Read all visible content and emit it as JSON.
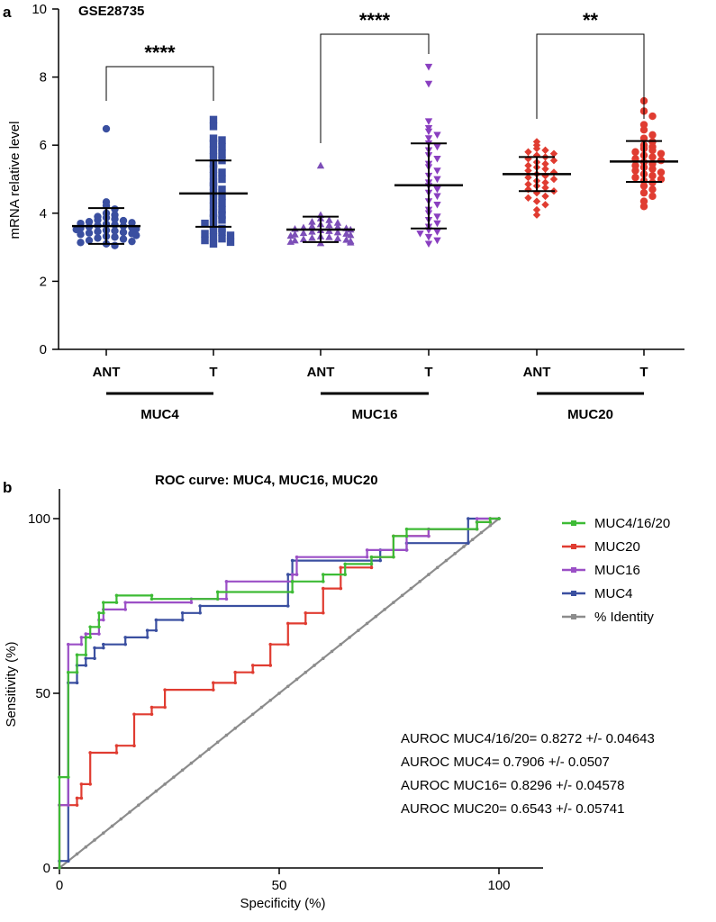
{
  "figure": {
    "panel_a_letter": "a",
    "panel_b_letter": "b"
  },
  "chart_data": [
    {
      "type": "scatter",
      "title": "GSE28735",
      "xlabel": "",
      "ylabel": "mRNA relative level",
      "ylim": [
        0,
        10
      ],
      "yticks": [
        0,
        2,
        4,
        6,
        8,
        10
      ],
      "categories": [
        "ANT",
        "T",
        "ANT",
        "T",
        "ANT",
        "T"
      ],
      "groups": [
        "MUC4",
        "MUC16",
        "MUC20"
      ],
      "significance": [
        "****",
        "****",
        "**"
      ],
      "series": [
        {
          "group": "MUC4",
          "category": "ANT",
          "color": "#3a4fa0",
          "marker": "circle",
          "mean": 3.62,
          "sd_low": 3.1,
          "sd_high": 4.15,
          "values": [
            6.48,
            4.33,
            4.22,
            4.12,
            4.0,
            3.95,
            3.9,
            3.87,
            3.83,
            3.8,
            3.78,
            3.75,
            3.72,
            3.7,
            3.68,
            3.66,
            3.64,
            3.62,
            3.6,
            3.58,
            3.56,
            3.54,
            3.52,
            3.5,
            3.48,
            3.46,
            3.44,
            3.42,
            3.4,
            3.38,
            3.35,
            3.32,
            3.3,
            3.27,
            3.24,
            3.2,
            3.17,
            3.14,
            3.1,
            3.05
          ]
        },
        {
          "group": "MUC4",
          "category": "T",
          "color": "#3a4fa0",
          "marker": "square",
          "mean": 4.58,
          "sd_low": 3.6,
          "sd_high": 5.55,
          "values": [
            6.75,
            6.55,
            6.2,
            6.15,
            6.05,
            5.95,
            5.85,
            5.75,
            5.65,
            5.55,
            5.45,
            5.3,
            5.2,
            5.1,
            5.0,
            4.9,
            4.8,
            4.7,
            4.6,
            4.5,
            4.4,
            4.3,
            4.2,
            4.1,
            4.0,
            3.95,
            3.85,
            3.8,
            3.7,
            3.65,
            3.55,
            3.5,
            3.45,
            3.4,
            3.35,
            3.3,
            3.25,
            3.2,
            3.15,
            3.1
          ]
        },
        {
          "group": "MUC16",
          "category": "ANT",
          "color": "#7d4fb8",
          "marker": "triangle-up",
          "mean": 3.52,
          "sd_low": 3.15,
          "sd_high": 3.9,
          "values": [
            5.4,
            3.95,
            3.85,
            3.8,
            3.75,
            3.72,
            3.68,
            3.65,
            3.62,
            3.6,
            3.58,
            3.56,
            3.54,
            3.52,
            3.5,
            3.48,
            3.46,
            3.44,
            3.42,
            3.4,
            3.38,
            3.36,
            3.34,
            3.32,
            3.3,
            3.28,
            3.26,
            3.24,
            3.22,
            3.2,
            3.18,
            3.16,
            3.14,
            3.12
          ]
        },
        {
          "group": "MUC16",
          "category": "T",
          "color": "#8a3fc0",
          "marker": "triangle-down",
          "mean": 4.82,
          "sd_low": 3.55,
          "sd_high": 6.05,
          "values": [
            8.3,
            7.8,
            6.7,
            6.5,
            6.4,
            6.3,
            6.2,
            6.05,
            5.95,
            5.85,
            5.7,
            5.6,
            5.45,
            5.35,
            5.25,
            5.1,
            5.0,
            4.9,
            4.8,
            4.7,
            4.6,
            4.5,
            4.35,
            4.25,
            4.1,
            4.0,
            3.9,
            3.8,
            3.7,
            3.6,
            3.5,
            3.45,
            3.4,
            3.3,
            3.2,
            3.1
          ]
        },
        {
          "group": "MUC20",
          "category": "ANT",
          "color": "#e03c31",
          "marker": "diamond",
          "mean": 5.15,
          "sd_low": 4.65,
          "sd_high": 5.65,
          "values": [
            6.1,
            6.0,
            5.9,
            5.85,
            5.8,
            5.75,
            5.7,
            5.65,
            5.6,
            5.55,
            5.5,
            5.45,
            5.4,
            5.35,
            5.3,
            5.25,
            5.2,
            5.15,
            5.1,
            5.05,
            5.0,
            4.95,
            4.9,
            4.85,
            4.8,
            4.75,
            4.7,
            4.65,
            4.6,
            4.5,
            4.45,
            4.35,
            4.25,
            4.1,
            3.95
          ]
        },
        {
          "group": "MUC20",
          "category": "T",
          "color": "#e03c31",
          "marker": "circle",
          "mean": 5.52,
          "sd_low": 4.92,
          "sd_high": 6.12,
          "values": [
            7.3,
            7.0,
            6.85,
            6.6,
            6.45,
            6.3,
            6.2,
            6.1,
            6.0,
            5.95,
            5.9,
            5.85,
            5.8,
            5.75,
            5.7,
            5.65,
            5.6,
            5.55,
            5.5,
            5.45,
            5.4,
            5.35,
            5.3,
            5.25,
            5.2,
            5.15,
            5.1,
            5.05,
            5.0,
            4.95,
            4.9,
            4.8,
            4.7,
            4.6,
            4.5,
            4.35,
            4.2
          ]
        }
      ]
    },
    {
      "type": "line",
      "title": "ROC curve:  MUC4, MUC16, MUC20",
      "xlabel": "Specificity (%)",
      "ylabel": "Sensitivity (%)",
      "xlim": [
        0,
        110
      ],
      "ylim": [
        0,
        110
      ],
      "xticks": [
        0,
        50,
        100
      ],
      "yticks": [
        0,
        50,
        100
      ],
      "legend_position": "top-right",
      "series": [
        {
          "name": "MUC4/16/20",
          "color": "#3dbb35",
          "points": [
            [
              0,
              0
            ],
            [
              0,
              26
            ],
            [
              2,
              26
            ],
            [
              2,
              56
            ],
            [
              4,
              56
            ],
            [
              4,
              61
            ],
            [
              6,
              61
            ],
            [
              6,
              66
            ],
            [
              7,
              66
            ],
            [
              7,
              69
            ],
            [
              9,
              69
            ],
            [
              9,
              73
            ],
            [
              10,
              73
            ],
            [
              10,
              76
            ],
            [
              13,
              76
            ],
            [
              13,
              78
            ],
            [
              21,
              78
            ],
            [
              21,
              77
            ],
            [
              36,
              77
            ],
            [
              36,
              79
            ],
            [
              53,
              79
            ],
            [
              53,
              82
            ],
            [
              60,
              82
            ],
            [
              60,
              84
            ],
            [
              65,
              84
            ],
            [
              65,
              87
            ],
            [
              71,
              87
            ],
            [
              71,
              89
            ],
            [
              76,
              89
            ],
            [
              76,
              95
            ],
            [
              79,
              95
            ],
            [
              79,
              97
            ],
            [
              95,
              97
            ],
            [
              95,
              99
            ],
            [
              98,
              99
            ],
            [
              98,
              100
            ],
            [
              100,
              100
            ]
          ]
        },
        {
          "name": "MUC20",
          "color": "#e03c31",
          "points": [
            [
              0,
              0
            ],
            [
              0,
              18
            ],
            [
              4,
              18
            ],
            [
              4,
              20
            ],
            [
              5,
              20
            ],
            [
              5,
              24
            ],
            [
              7,
              24
            ],
            [
              7,
              33
            ],
            [
              13,
              33
            ],
            [
              13,
              35
            ],
            [
              17,
              35
            ],
            [
              17,
              44
            ],
            [
              21,
              44
            ],
            [
              21,
              46
            ],
            [
              24,
              46
            ],
            [
              24,
              51
            ],
            [
              35,
              51
            ],
            [
              35,
              53
            ],
            [
              40,
              53
            ],
            [
              40,
              56
            ],
            [
              44,
              56
            ],
            [
              44,
              58
            ],
            [
              48,
              58
            ],
            [
              48,
              64
            ],
            [
              52,
              64
            ],
            [
              52,
              70
            ],
            [
              56,
              70
            ],
            [
              56,
              73
            ],
            [
              60,
              73
            ],
            [
              60,
              80
            ],
            [
              64,
              80
            ],
            [
              64,
              86
            ],
            [
              71,
              86
            ],
            [
              71,
              89
            ],
            [
              76,
              89
            ],
            [
              76,
              95
            ],
            [
              84,
              95
            ],
            [
              84,
              97
            ],
            [
              95,
              97
            ],
            [
              95,
              99
            ],
            [
              98,
              99
            ],
            [
              98,
              100
            ],
            [
              100,
              100
            ]
          ]
        },
        {
          "name": "MUC16",
          "color": "#9b4fc6",
          "points": [
            [
              0,
              0
            ],
            [
              0,
              18
            ],
            [
              2,
              18
            ],
            [
              2,
              64
            ],
            [
              5,
              64
            ],
            [
              5,
              66
            ],
            [
              6,
              66
            ],
            [
              6,
              67
            ],
            [
              9,
              67
            ],
            [
              9,
              71
            ],
            [
              10,
              71
            ],
            [
              10,
              74
            ],
            [
              15,
              74
            ],
            [
              15,
              76
            ],
            [
              30,
              76
            ],
            [
              30,
              77
            ],
            [
              38,
              77
            ],
            [
              38,
              82
            ],
            [
              53,
              82
            ],
            [
              53,
              84
            ],
            [
              54,
              84
            ],
            [
              54,
              89
            ],
            [
              70,
              89
            ],
            [
              70,
              91
            ],
            [
              79,
              91
            ],
            [
              79,
              95
            ],
            [
              84,
              95
            ],
            [
              84,
              97
            ],
            [
              95,
              97
            ],
            [
              95,
              100
            ],
            [
              100,
              100
            ]
          ]
        },
        {
          "name": "MUC4",
          "color": "#3a4fa0",
          "points": [
            [
              0,
              0
            ],
            [
              0,
              2
            ],
            [
              2,
              2
            ],
            [
              2,
              53
            ],
            [
              4,
              53
            ],
            [
              4,
              58
            ],
            [
              6,
              58
            ],
            [
              6,
              60
            ],
            [
              8,
              60
            ],
            [
              8,
              63
            ],
            [
              10,
              63
            ],
            [
              10,
              64
            ],
            [
              15,
              64
            ],
            [
              15,
              66
            ],
            [
              20,
              66
            ],
            [
              20,
              68
            ],
            [
              22,
              68
            ],
            [
              22,
              71
            ],
            [
              28,
              71
            ],
            [
              28,
              73
            ],
            [
              32,
              73
            ],
            [
              32,
              75
            ],
            [
              52,
              75
            ],
            [
              52,
              84
            ],
            [
              53,
              84
            ],
            [
              53,
              88
            ],
            [
              73,
              88
            ],
            [
              73,
              91
            ],
            [
              79,
              91
            ],
            [
              79,
              93
            ],
            [
              93,
              93
            ],
            [
              93,
              100
            ],
            [
              100,
              100
            ]
          ]
        },
        {
          "name": "% Identity",
          "color": "#8c8c8c",
          "points": [
            [
              0,
              0
            ],
            [
              100,
              100
            ]
          ]
        }
      ],
      "annotations": [
        "AUROC MUC4/16/20= 0.8272 +/- 0.04643",
        "AUROC MUC4= 0.7906 +/- 0.0507",
        "AUROC MUC16= 0.8296 +/- 0.04578",
        "AUROC MUC20= 0.6543 +/- 0.05741"
      ]
    }
  ]
}
